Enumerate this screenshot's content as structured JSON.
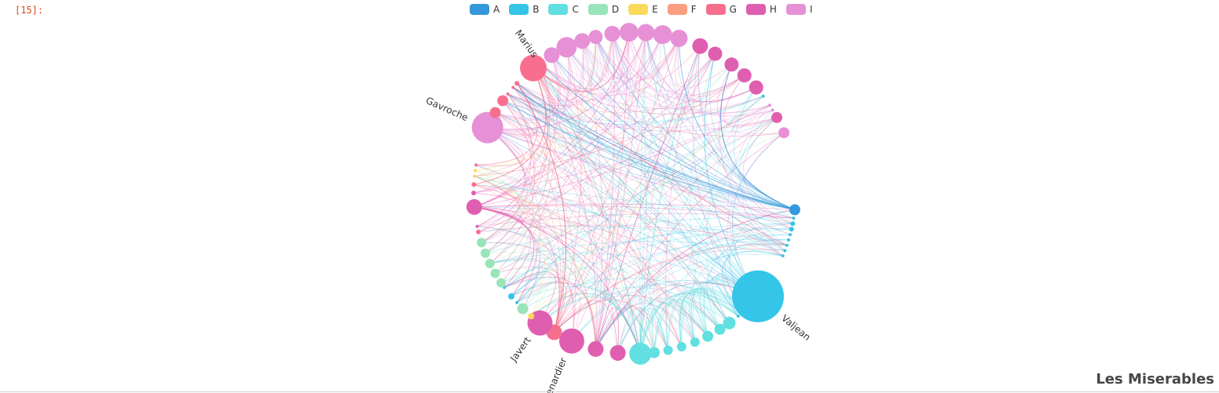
{
  "notebook": {
    "prompt": "[15]:"
  },
  "chart_data": {
    "type": "circular-graph",
    "title": "Les Miserables",
    "categories": [
      "A",
      "B",
      "C",
      "D",
      "E",
      "F",
      "G",
      "H",
      "I"
    ],
    "colors": [
      "#3498db",
      "#35c5e8",
      "#62dfe0",
      "#99e4b8",
      "#fbd95a",
      "#fb9e80",
      "#f86f8e",
      "#e05eb0",
      "#e691d6"
    ],
    "labels": {
      "marius": "Marius",
      "gavroche": "Gavroche",
      "valjean": "Valjean",
      "javert": "Javert",
      "thenardier": "Thenardier"
    }
  }
}
